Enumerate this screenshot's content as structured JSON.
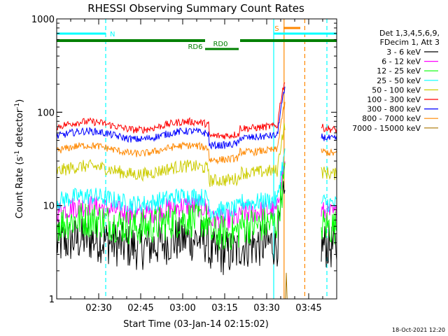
{
  "chart_data": {
    "type": "line",
    "title": "RHESSI Observing Summary Count Rates",
    "xlabel": "Start Time (03-Jan-14 02:15:02)",
    "ylabel_main": "Count Rate (s",
    "ylabel_sup1": "-1",
    "ylabel_mid": " detector",
    "ylabel_sup2": "-1",
    "ylabel_end": ")",
    "yscale": "log",
    "ylim": [
      1,
      1000
    ],
    "xlim_minutes": [
      0,
      100
    ],
    "xticks": [
      {
        "m": 15,
        "label": "02:30"
      },
      {
        "m": 30,
        "label": "02:45"
      },
      {
        "m": 45,
        "label": "03:00"
      },
      {
        "m": 60,
        "label": "03:15"
      },
      {
        "m": 75,
        "label": "03:30"
      },
      {
        "m": 90,
        "label": "03:45"
      }
    ],
    "yticks": [
      {
        "v": 1,
        "label": "1"
      },
      {
        "v": 10,
        "label": "10"
      },
      {
        "v": 100,
        "label": "100"
      },
      {
        "v": 1000,
        "label": "1000"
      }
    ],
    "legend_header": [
      "Det 1,3,4,5,6,9,",
      "FDecim 1, Att 3"
    ],
    "series": [
      {
        "name": "3 - 6 keV",
        "color": "#000000",
        "base": 4.0,
        "noise": 0.25
      },
      {
        "name": "6 - 12 keV",
        "color": "#ff00ff",
        "base": 9.0,
        "noise": 0.12
      },
      {
        "name": "12 - 25 keV",
        "color": "#00ff00",
        "base": 6.5,
        "noise": 0.2
      },
      {
        "name": "25 - 50 keV",
        "color": "#00ffff",
        "base": 11.5,
        "noise": 0.1
      },
      {
        "name": "50 - 100 keV",
        "color": "#cccc00",
        "base": 24,
        "noise": 0.07
      },
      {
        "name": "100 - 300 keV",
        "color": "#ff0000",
        "base": 72,
        "noise": 0.04
      },
      {
        "name": "300 - 800 keV",
        "color": "#0000ff",
        "base": 57,
        "noise": 0.04
      },
      {
        "name": "800 - 7000 keV",
        "color": "#ff8800",
        "base": 40,
        "noise": 0.04
      },
      {
        "name": "7000 - 15000 keV",
        "color": "#aa7700",
        "base": 1.0,
        "noise": 0.0
      }
    ],
    "flags": [
      {
        "label": "N",
        "color": "#00ffff",
        "start": 0,
        "end": 17.5,
        "level": 1
      },
      {
        "label": "RD0",
        "color": "#008000",
        "start": 53,
        "end": 65,
        "level": 2
      },
      {
        "label": "RD6",
        "color": "#008000",
        "start": 0,
        "end": 100,
        "level": 3
      },
      {
        "label": "S",
        "color": "#ff8800",
        "start": 81,
        "end": 87,
        "level": 0
      }
    ],
    "vlines": [
      {
        "m": 17.5,
        "color": "#00ffff",
        "style": "dashed"
      },
      {
        "m": 77.5,
        "color": "#00ffff",
        "style": "solid"
      },
      {
        "m": 81.2,
        "color": "#ff8800",
        "style": "solid"
      },
      {
        "m": 88.6,
        "color": "#ff8800",
        "style": "dashed"
      },
      {
        "m": 96.5,
        "color": "#00ffff",
        "style": "dashed"
      }
    ],
    "footer_date": "18-Oct-2021 12:20"
  }
}
